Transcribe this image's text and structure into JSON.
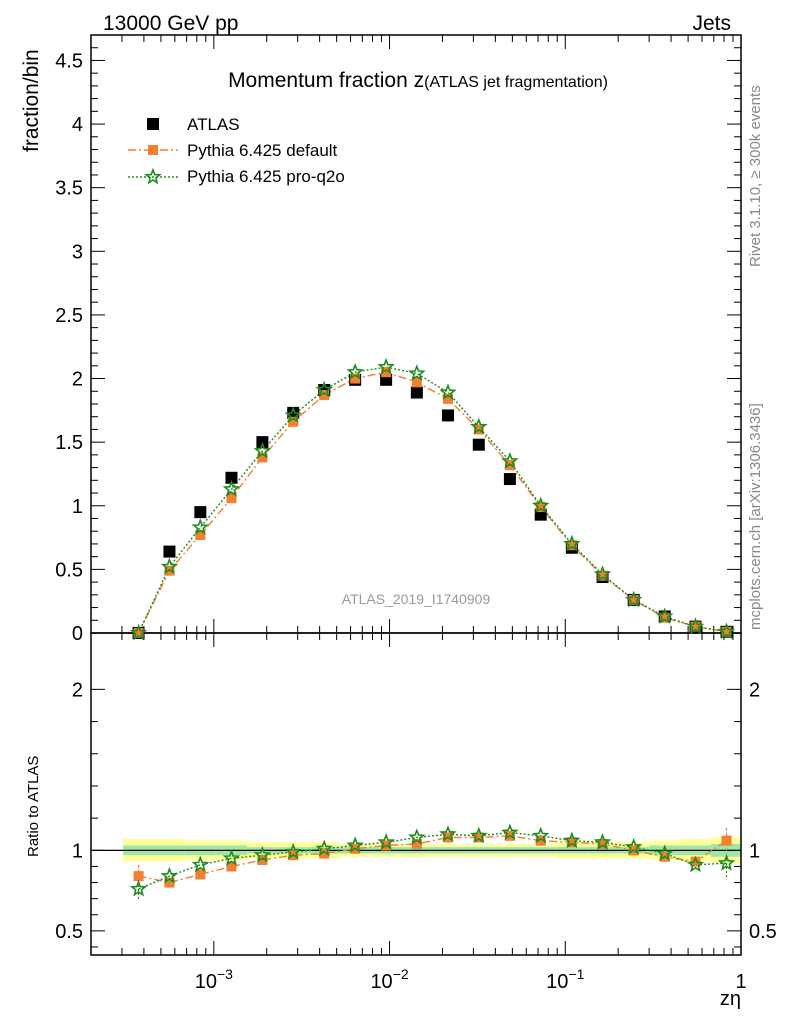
{
  "header": {
    "left": "13000 GeV pp",
    "right": "Jets"
  },
  "side": {
    "rivet": "Rivet 3.1.10, ≥ 300k events",
    "mcplots": "mcplots.cern.ch [arXiv:1306.3436]"
  },
  "chart_data": {
    "type": "scatter",
    "title_main": "Momentum fraction ",
    "title_var": "z",
    "title_sub": "(ATLAS jet fragmentation)",
    "watermark": "ATLAS_2019_I1740909",
    "ylabel": "fraction/bin",
    "ratio_ylabel": "Ratio to ATLAS",
    "xlabel": "zη",
    "xscale": "log",
    "xlim": [
      0.0002,
      1
    ],
    "ylim": [
      0,
      4.7
    ],
    "ratio_ylim": [
      0.35,
      2.35
    ],
    "y_ticks": [
      "0",
      "0.5",
      "1",
      "1.5",
      "2",
      "2.5",
      "3",
      "3.5",
      "4",
      "4.5"
    ],
    "ratio_ticks": [
      "0.5",
      "1",
      "2"
    ],
    "x_ticks": [
      {
        "base": "10",
        "exp": "−3",
        "value": 0.001
      },
      {
        "base": "10",
        "exp": "−2",
        "value": 0.01
      },
      {
        "base": "10",
        "exp": "−1",
        "value": 0.1
      },
      {
        "base": "1",
        "exp": "",
        "value": 1
      }
    ],
    "x": [
      0.000373,
      0.000559,
      0.000838,
      0.00126,
      0.00189,
      0.00283,
      0.00425,
      0.00637,
      0.00956,
      0.0143,
      0.0215,
      0.0322,
      0.0484,
      0.0725,
      0.109,
      0.163,
      0.245,
      0.368,
      0.551,
      0.827
    ],
    "series": [
      {
        "name": "ATLAS",
        "color": "#000000",
        "values": [
          0.0,
          0.64,
          0.95,
          1.22,
          1.5,
          1.73,
          1.91,
          1.99,
          1.99,
          1.89,
          1.71,
          1.48,
          1.21,
          0.93,
          0.67,
          0.44,
          0.26,
          0.13,
          0.05,
          0.01
        ]
      },
      {
        "name": "Pythia 6.425 default",
        "color": "#f47f30",
        "values": [
          0.0,
          0.49,
          0.77,
          1.06,
          1.38,
          1.66,
          1.87,
          2.0,
          2.05,
          1.97,
          1.84,
          1.6,
          1.32,
          0.99,
          0.69,
          0.45,
          0.26,
          0.12,
          0.05,
          0.01
        ],
        "ratio": [
          0.84,
          0.8,
          0.85,
          0.9,
          0.94,
          0.97,
          0.98,
          1.01,
          1.03,
          1.04,
          1.08,
          1.08,
          1.09,
          1.06,
          1.05,
          1.04,
          1.0,
          0.96,
          0.93,
          1.06
        ]
      },
      {
        "name": "Pythia 6.425 pro-q2o",
        "color": "#1e8c1e",
        "values": [
          0.0,
          0.52,
          0.83,
          1.13,
          1.43,
          1.71,
          1.91,
          2.05,
          2.09,
          2.04,
          1.89,
          1.62,
          1.35,
          1.0,
          0.7,
          0.46,
          0.26,
          0.13,
          0.05,
          0.01
        ],
        "ratio": [
          0.76,
          0.84,
          0.91,
          0.95,
          0.97,
          0.99,
          1.01,
          1.03,
          1.05,
          1.08,
          1.1,
          1.09,
          1.11,
          1.09,
          1.06,
          1.05,
          1.02,
          0.98,
          0.91,
          0.92
        ]
      }
    ]
  }
}
